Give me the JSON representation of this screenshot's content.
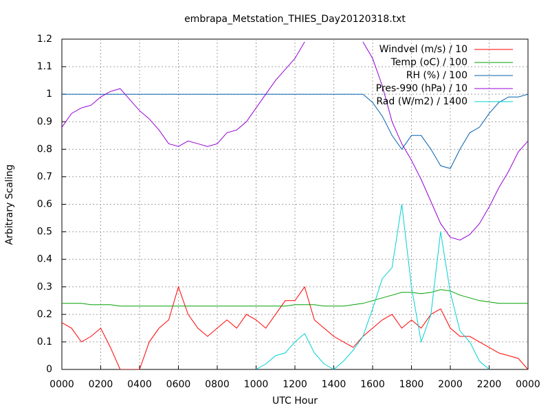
{
  "chart_data": {
    "type": "line",
    "title": "embrapa_Metstation_THIES_Day20120318.txt",
    "x_label": "UTC Hour",
    "y_label": "Arbitrary Scaling",
    "x": [
      0,
      0.5,
      1,
      1.5,
      2,
      2.5,
      3,
      3.5,
      4,
      4.5,
      5,
      5.5,
      6,
      6.5,
      7,
      7.5,
      8,
      8.5,
      9,
      9.5,
      10,
      10.5,
      11,
      11.5,
      12,
      12.5,
      13,
      13.5,
      14,
      14.5,
      15,
      15.5,
      16,
      16.5,
      17,
      17.5,
      18,
      18.5,
      19,
      19.5,
      20,
      20.5,
      21,
      21.5,
      22,
      22.5,
      23,
      23.5,
      24
    ],
    "series": [
      {
        "name": "Windvel (m/s) / 10",
        "color": "#ff0000",
        "values": [
          0.17,
          0.15,
          0.1,
          0.12,
          0.15,
          0.08,
          0,
          0,
          0,
          0.1,
          0.15,
          0.18,
          0.3,
          0.2,
          0.15,
          0.12,
          0.15,
          0.18,
          0.15,
          0.2,
          0.18,
          0.15,
          0.2,
          0.25,
          0.25,
          0.3,
          0.18,
          0.15,
          0.12,
          0.1,
          0.08,
          0.12,
          0.15,
          0.18,
          0.2,
          0.15,
          0.18,
          0.15,
          0.2,
          0.22,
          0.15,
          0.12,
          0.12,
          0.1,
          0.08,
          0.06,
          0.05,
          0.04,
          0
        ]
      },
      {
        "name": "Temp (oC) / 100",
        "color": "#00a000",
        "values": [
          0.24,
          0.24,
          0.24,
          0.235,
          0.235,
          0.235,
          0.23,
          0.23,
          0.23,
          0.23,
          0.23,
          0.23,
          0.23,
          0.23,
          0.23,
          0.23,
          0.23,
          0.23,
          0.23,
          0.23,
          0.23,
          0.23,
          0.23,
          0.23,
          0.235,
          0.235,
          0.235,
          0.23,
          0.23,
          0.23,
          0.235,
          0.24,
          0.25,
          0.26,
          0.27,
          0.28,
          0.28,
          0.275,
          0.28,
          0.29,
          0.285,
          0.27,
          0.26,
          0.25,
          0.245,
          0.24,
          0.24,
          0.24,
          0.24
        ]
      },
      {
        "name": "RH (%) / 100",
        "color": "#0060ad",
        "values": [
          1,
          1,
          1,
          1,
          1,
          1,
          1,
          1,
          1,
          1,
          1,
          1,
          1,
          1,
          1,
          1,
          1,
          1,
          1,
          1,
          1,
          1,
          1,
          1,
          1,
          1,
          1,
          1,
          1,
          1,
          1,
          1,
          0.97,
          0.92,
          0.85,
          0.8,
          0.85,
          0.85,
          0.8,
          0.74,
          0.73,
          0.8,
          0.86,
          0.88,
          0.93,
          0.97,
          0.99,
          0.99,
          1
        ]
      },
      {
        "name": "Pres-990 (hPa) / 10",
        "color": "#9400d3",
        "values": [
          0.88,
          0.93,
          0.95,
          0.96,
          0.99,
          1.01,
          1.02,
          0.98,
          0.94,
          0.91,
          0.87,
          0.82,
          0.81,
          0.83,
          0.82,
          0.81,
          0.82,
          0.86,
          0.87,
          0.9,
          0.95,
          1,
          1.05,
          1.09,
          1.13,
          1.19,
          null,
          null,
          null,
          null,
          null,
          1.19,
          1.13,
          1.03,
          0.9,
          0.82,
          0.76,
          0.69,
          0.61,
          0.53,
          0.48,
          0.47,
          0.49,
          0.53,
          0.59,
          0.66,
          0.72,
          0.79,
          0.83
        ]
      },
      {
        "name": "Rad (W/m2) / 1400",
        "color": "#00d0d0",
        "values": [
          null,
          null,
          null,
          null,
          null,
          null,
          null,
          null,
          null,
          null,
          null,
          null,
          null,
          null,
          null,
          null,
          null,
          null,
          null,
          null,
          0,
          0.02,
          0.05,
          0.06,
          0.1,
          0.13,
          0.06,
          0.02,
          0,
          0.03,
          0.07,
          0.12,
          0.22,
          0.33,
          0.37,
          0.6,
          0.3,
          0.1,
          0.2,
          0.5,
          0.28,
          0.14,
          0.1,
          0.03,
          0,
          null,
          null,
          null,
          null
        ]
      }
    ],
    "xlim": [
      0,
      24
    ],
    "xticks": [
      {
        "value": 0,
        "label": "0000"
      },
      {
        "value": 2,
        "label": "0200"
      },
      {
        "value": 4,
        "label": "0400"
      },
      {
        "value": 6,
        "label": "0600"
      },
      {
        "value": 8,
        "label": "0800"
      },
      {
        "value": 10,
        "label": "1000"
      },
      {
        "value": 12,
        "label": "1200"
      },
      {
        "value": 14,
        "label": "1400"
      },
      {
        "value": 16,
        "label": "1600"
      },
      {
        "value": 18,
        "label": "1800"
      },
      {
        "value": 20,
        "label": "2000"
      },
      {
        "value": 22,
        "label": "2200"
      },
      {
        "value": 24,
        "label": "0000"
      }
    ],
    "ylim": [
      0,
      1.2
    ],
    "yticks": [
      0,
      0.1,
      0.2,
      0.3,
      0.4,
      0.5,
      0.6,
      0.7,
      0.8,
      0.9,
      1,
      1.1,
      1.2
    ],
    "grid": true,
    "legend": "top-right"
  }
}
